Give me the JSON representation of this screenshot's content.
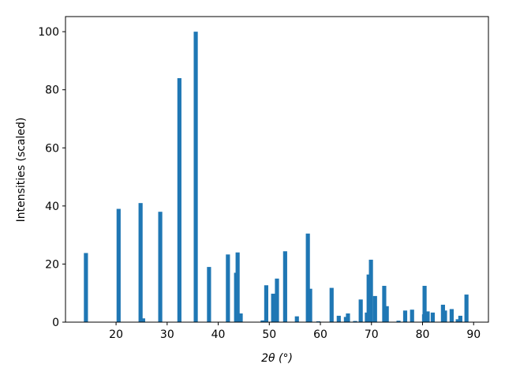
{
  "chart_data": {
    "type": "bar",
    "xlabel": "2θ (°)",
    "ylabel": "Intensities (scaled)",
    "x": [
      14.1,
      20.5,
      24.8,
      25.3,
      28.65,
      32.4,
      35.6,
      38.2,
      41.9,
      43.5,
      43.8,
      44.4,
      48.7,
      49.4,
      50.75,
      51.5,
      53.1,
      55.4,
      57.55,
      58.0,
      59.6,
      62.2,
      63.6,
      65.0,
      65.4,
      66.8,
      67.9,
      69.1,
      69.45,
      69.9,
      70.7,
      72.5,
      73.0,
      75.3,
      76.6,
      77.95,
      80.3,
      80.4,
      81.0,
      82.0,
      84.0,
      84.4,
      85.7,
      86.9,
      87.4,
      88.6
    ],
    "values": [
      23.8,
      39,
      41,
      1.3,
      38,
      84,
      100,
      19,
      23.3,
      17,
      24,
      3,
      0.6,
      12.7,
      9.8,
      15,
      24.4,
      2,
      30.5,
      11.5,
      0.3,
      11.8,
      2.2,
      1.8,
      3,
      0.4,
      7.8,
      3.3,
      16.4,
      21.5,
      9,
      12.5,
      5.5,
      0.5,
      4,
      4.3,
      2.7,
      12.5,
      3.7,
      3.3,
      6,
      4,
      4.5,
      1,
      2.2,
      9.5
    ],
    "bar_width": 0.8,
    "color": "#1f77b4",
    "xlim": [
      10.1,
      92.9
    ],
    "xticks": [
      20,
      30,
      40,
      50,
      60,
      70,
      80,
      90
    ],
    "ylim": [
      0,
      105.2
    ],
    "yticks": [
      0,
      20,
      40,
      60,
      80,
      100
    ]
  }
}
